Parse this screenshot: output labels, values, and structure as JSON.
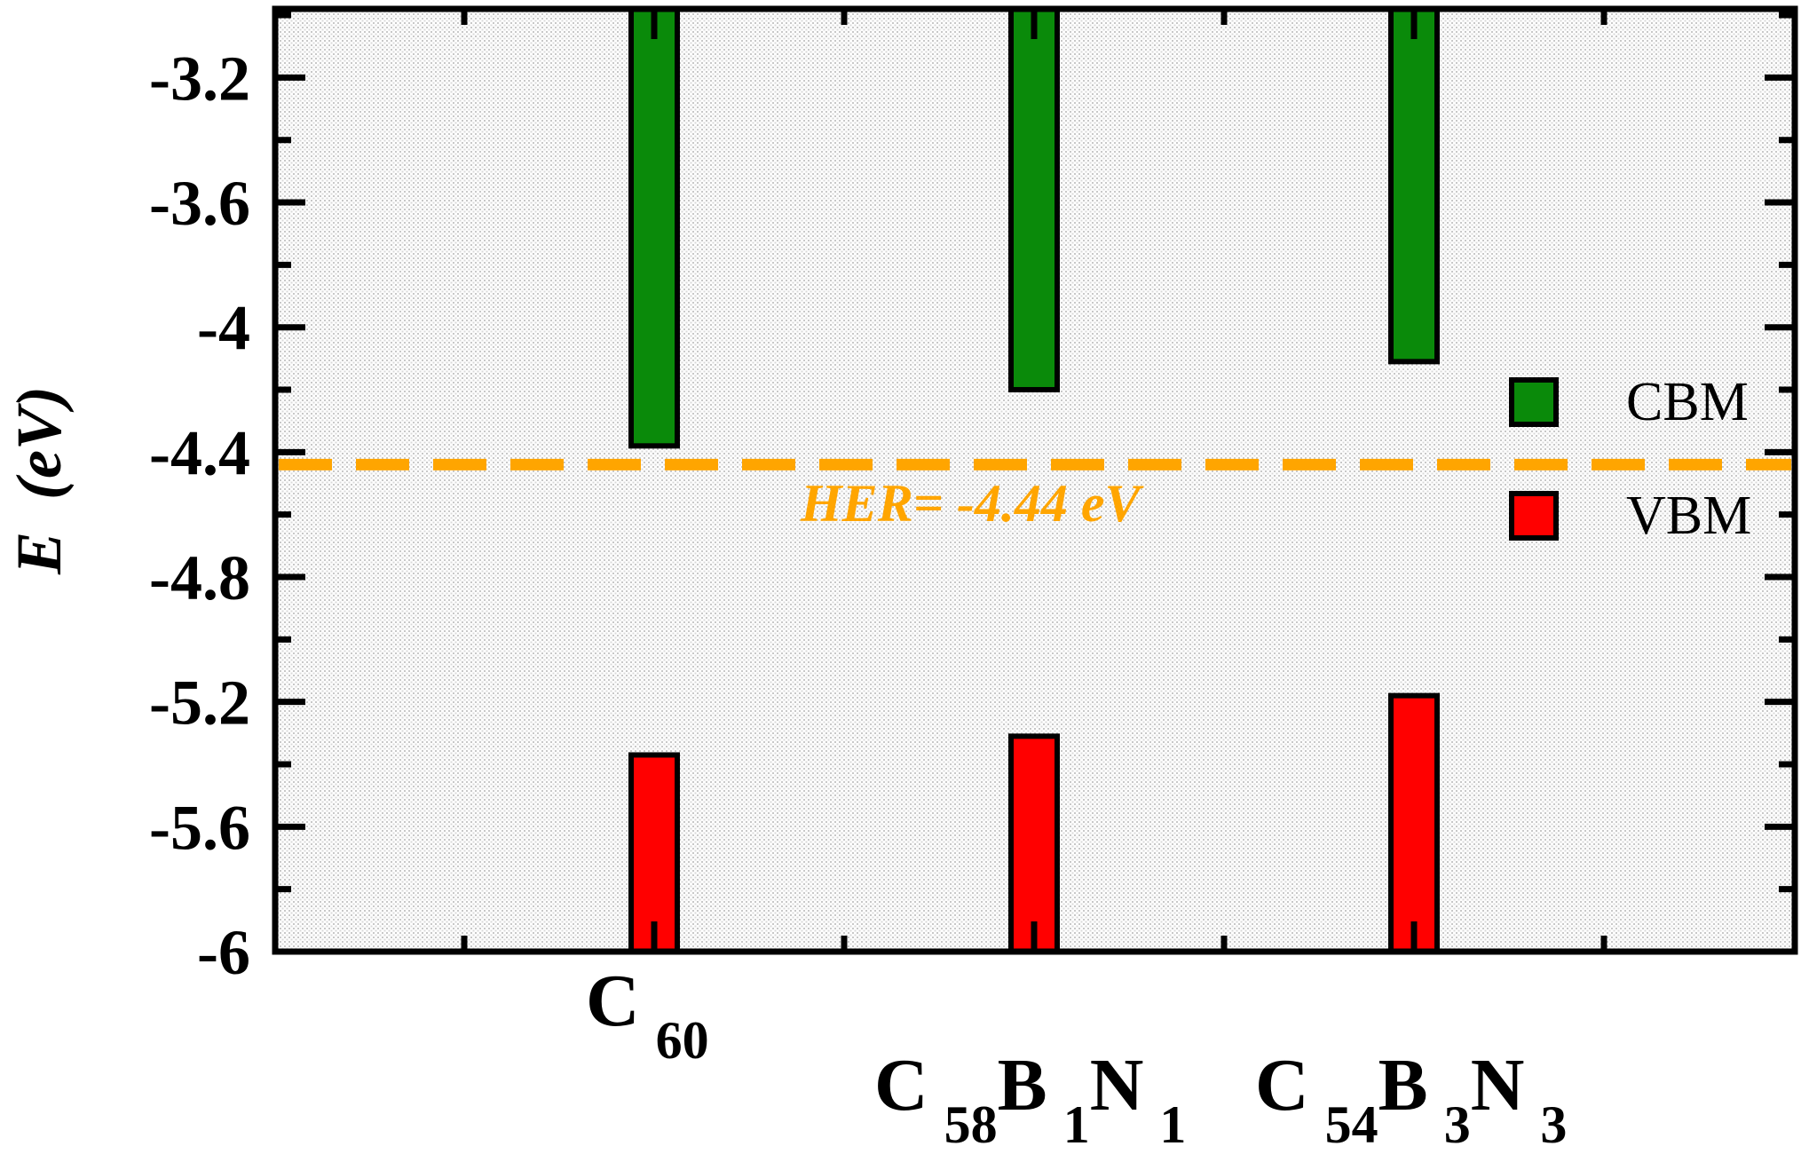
{
  "chart_data": {
    "type": "bar",
    "ylabel_main": "E",
    "ylabel_unit": "(eV)",
    "ylim": [
      -6.0,
      -2.98
    ],
    "yticks": [
      "-3.2",
      "-3.6",
      "-4",
      "-4.4",
      "-4.8",
      "-5.2",
      "-5.6",
      "-6"
    ],
    "ytick_values": [
      -3.2,
      -3.6,
      -4.0,
      -4.4,
      -4.8,
      -5.2,
      -5.6,
      -6.0
    ],
    "categories": [
      {
        "parts": [
          {
            "t": "C",
            "sub": "60"
          }
        ]
      },
      {
        "parts": [
          {
            "t": "C",
            "sub": "58"
          },
          {
            "t": "B",
            "sub": "1"
          },
          {
            "t": "N",
            "sub": "1"
          }
        ]
      },
      {
        "parts": [
          {
            "t": "C",
            "sub": "54"
          },
          {
            "t": "B",
            "sub": "3"
          },
          {
            "t": "N",
            "sub": "3"
          }
        ]
      }
    ],
    "series": [
      {
        "name": "CBM",
        "color": "#0a8a0a",
        "values": [
          -4.38,
          -4.2,
          -4.11
        ]
      },
      {
        "name": "VBM",
        "color": "#ff0000",
        "values": [
          -5.37,
          -5.31,
          -5.18
        ]
      }
    ],
    "reference_line": {
      "value": -4.44,
      "label": "HER= -4.44 eV",
      "color": "#ffa500"
    },
    "legend_position": "right"
  }
}
